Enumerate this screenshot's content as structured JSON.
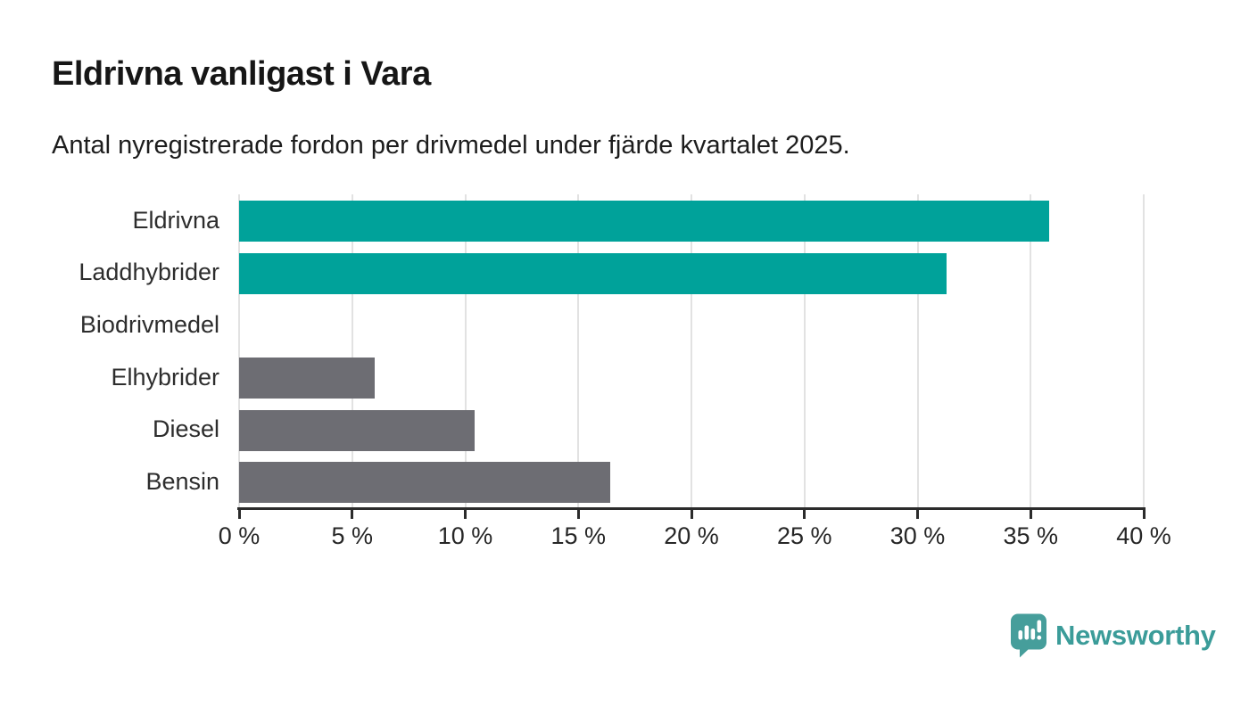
{
  "header": {
    "title": "Eldrivna vanligast i Vara",
    "subtitle": "Antal nyregistrerade fordon per drivmedel under fjärde kvartalet 2025."
  },
  "chart_data": {
    "type": "bar",
    "orientation": "horizontal",
    "title": "Eldrivna vanligast i Vara",
    "subtitle": "Antal nyregistrerade fordon per drivmedel under fjärde kvartalet 2025.",
    "categories": [
      "Eldrivna",
      "Laddhybrider",
      "Biodrivmedel",
      "Elhybrider",
      "Diesel",
      "Bensin"
    ],
    "values": [
      35.8,
      31.3,
      0,
      6.0,
      10.4,
      16.4
    ],
    "unit": "%",
    "bar_colors": [
      "#00a29a",
      "#00a29a",
      null,
      "#6d6d73",
      "#6d6d73",
      "#6d6d73"
    ],
    "highlight_color": "#00a29a",
    "default_color": "#6d6d73",
    "xlabel": "",
    "ylabel": "",
    "xlim": [
      0,
      40
    ],
    "x_ticks": [
      0,
      5,
      10,
      15,
      20,
      25,
      30,
      35,
      40
    ],
    "x_tick_labels": [
      "0 %",
      "5 %",
      "10 %",
      "15 %",
      "20 %",
      "25 %",
      "30 %",
      "35 %",
      "40 %"
    ],
    "grid": "vertical",
    "gridline_color": "#e2e2e2",
    "axis_color": "#2b2b2b",
    "legend": "none"
  },
  "footer": {
    "brand": "Newsworthy",
    "brand_color": "#3b9c99",
    "logo_icon_color": "#469e9b"
  }
}
